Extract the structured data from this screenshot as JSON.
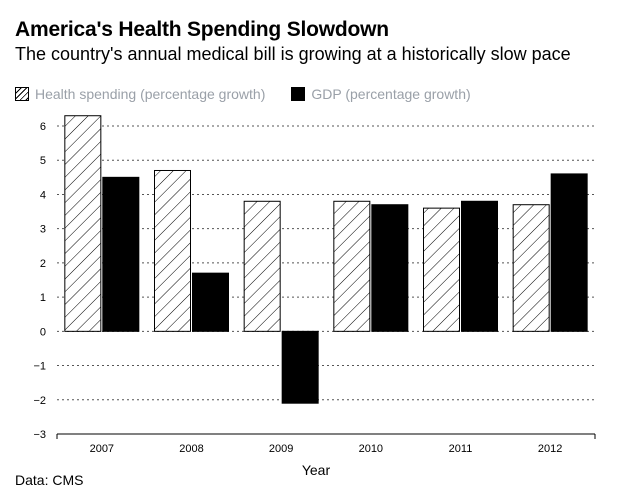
{
  "header": {
    "title": "America's Health Spending Slowdown",
    "subtitle": "The country's annual medical bill is growing at a historically slow pace"
  },
  "source": "Data: CMS",
  "colors": {
    "health": "#ffffff",
    "gdp": "#000000",
    "legend_text": "#9aa0a8"
  },
  "chart_data": {
    "type": "bar",
    "categories": [
      "2007",
      "2008",
      "2009",
      "2010",
      "2011",
      "2012"
    ],
    "series": [
      {
        "name": "Health spending (percentage growth)",
        "values": [
          6.3,
          4.7,
          3.8,
          3.8,
          3.6,
          3.7
        ],
        "fill": "hatched"
      },
      {
        "name": "GDP (percentage growth)",
        "values": [
          4.5,
          1.7,
          -2.1,
          3.7,
          3.8,
          4.6
        ],
        "fill": "solid"
      }
    ],
    "xlabel": "Year",
    "ylabel": "",
    "ylim": [
      -3,
      6
    ],
    "yticks": [
      6,
      5,
      4,
      3,
      2,
      1,
      0,
      -1,
      -2,
      -3
    ],
    "ytick_labels": [
      "6",
      "5",
      "4",
      "3",
      "2",
      "1",
      "0",
      "−1",
      "−2",
      "−3"
    ],
    "grid": true,
    "legend_position": "top-left"
  }
}
